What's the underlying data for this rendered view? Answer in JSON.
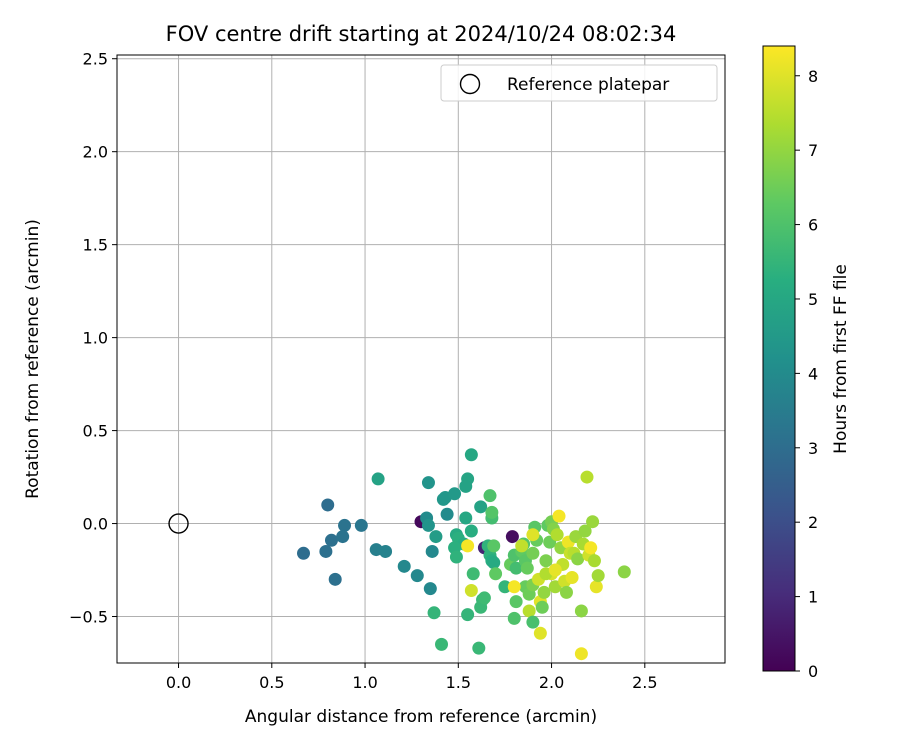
{
  "chart_data": {
    "type": "scatter",
    "title": "FOV centre drift starting at 2024/10/24 08:02:34",
    "xlabel": "Angular distance from reference (arcmin)",
    "ylabel": "Rotation from reference (arcmin)",
    "xlim": [
      -0.33,
      2.93
    ],
    "ylim": [
      -0.75,
      2.52
    ],
    "xticks": [
      0.0,
      0.5,
      1.0,
      1.5,
      2.0,
      2.5
    ],
    "xtick_labels": [
      "0.0",
      "0.5",
      "1.0",
      "1.5",
      "2.0",
      "2.5"
    ],
    "yticks": [
      -0.5,
      0.0,
      0.5,
      1.0,
      1.5,
      2.0,
      2.5
    ],
    "ytick_labels": [
      "−0.5",
      "0.0",
      "0.5",
      "1.0",
      "1.5",
      "2.0",
      "2.5"
    ],
    "grid": true,
    "legend": {
      "placement": "top-right",
      "entries": [
        "Reference platepar"
      ]
    },
    "reference_point": {
      "x": 0.0,
      "y": 0.0,
      "marker": "open-circle"
    },
    "colorbar": {
      "label": "Hours from first FF file",
      "colormap": "viridis",
      "range": [
        0,
        8.4
      ],
      "ticks": [
        0,
        1,
        2,
        3,
        4,
        5,
        6,
        7,
        8
      ],
      "tick_labels": [
        "0",
        "1",
        "2",
        "3",
        "4",
        "5",
        "6",
        "7",
        "8"
      ]
    },
    "points": [
      {
        "x": 1.3,
        "y": 0.01,
        "h": 0.2
      },
      {
        "x": 1.79,
        "y": -0.07,
        "h": 0.3
      },
      {
        "x": 1.64,
        "y": -0.13,
        "h": 0.8
      },
      {
        "x": 0.8,
        "y": 0.1,
        "h": 3.0
      },
      {
        "x": 0.67,
        "y": -0.16,
        "h": 3.0
      },
      {
        "x": 0.79,
        "y": -0.15,
        "h": 3.1
      },
      {
        "x": 0.82,
        "y": -0.09,
        "h": 3.1
      },
      {
        "x": 0.84,
        "y": -0.3,
        "h": 3.1
      },
      {
        "x": 0.89,
        "y": -0.01,
        "h": 3.2
      },
      {
        "x": 0.88,
        "y": -0.07,
        "h": 3.2
      },
      {
        "x": 0.98,
        "y": -0.01,
        "h": 3.3
      },
      {
        "x": 1.06,
        "y": -0.14,
        "h": 3.6
      },
      {
        "x": 1.11,
        "y": -0.15,
        "h": 3.7
      },
      {
        "x": 1.21,
        "y": -0.23,
        "h": 3.9
      },
      {
        "x": 1.28,
        "y": -0.28,
        "h": 3.9
      },
      {
        "x": 1.35,
        "y": -0.35,
        "h": 3.9
      },
      {
        "x": 1.36,
        "y": -0.15,
        "h": 3.9
      },
      {
        "x": 1.33,
        "y": 0.03,
        "h": 4.0
      },
      {
        "x": 1.34,
        "y": 0.22,
        "h": 4.3
      },
      {
        "x": 1.34,
        "y": -0.01,
        "h": 4.3
      },
      {
        "x": 1.44,
        "y": 0.05,
        "h": 4.0
      },
      {
        "x": 1.42,
        "y": 0.13,
        "h": 4.4
      },
      {
        "x": 1.43,
        "y": 0.14,
        "h": 4.4
      },
      {
        "x": 1.48,
        "y": 0.16,
        "h": 4.5
      },
      {
        "x": 1.38,
        "y": -0.07,
        "h": 4.6
      },
      {
        "x": 1.07,
        "y": 0.24,
        "h": 4.8
      },
      {
        "x": 1.55,
        "y": 0.24,
        "h": 4.9
      },
      {
        "x": 1.54,
        "y": 0.2,
        "h": 4.8
      },
      {
        "x": 1.57,
        "y": 0.37,
        "h": 5.0
      },
      {
        "x": 1.62,
        "y": 0.09,
        "h": 4.8
      },
      {
        "x": 1.54,
        "y": 0.03,
        "h": 5.0
      },
      {
        "x": 1.49,
        "y": -0.06,
        "h": 5.1
      },
      {
        "x": 1.5,
        "y": -0.08,
        "h": 5.3
      },
      {
        "x": 1.53,
        "y": -0.11,
        "h": 5.2
      },
      {
        "x": 1.57,
        "y": -0.04,
        "h": 5.2
      },
      {
        "x": 1.48,
        "y": -0.13,
        "h": 5.3
      },
      {
        "x": 1.49,
        "y": -0.18,
        "h": 5.4
      },
      {
        "x": 1.37,
        "y": -0.48,
        "h": 5.5
      },
      {
        "x": 1.41,
        "y": -0.65,
        "h": 5.6
      },
      {
        "x": 1.55,
        "y": -0.49,
        "h": 5.5
      },
      {
        "x": 1.58,
        "y": -0.27,
        "h": 5.7
      },
      {
        "x": 1.61,
        "y": -0.67,
        "h": 5.6
      },
      {
        "x": 1.62,
        "y": -0.45,
        "h": 5.6
      },
      {
        "x": 1.63,
        "y": -0.41,
        "h": 5.6
      },
      {
        "x": 1.64,
        "y": -0.4,
        "h": 5.7
      },
      {
        "x": 1.66,
        "y": -0.12,
        "h": 5.4
      },
      {
        "x": 1.67,
        "y": -0.17,
        "h": 5.4
      },
      {
        "x": 1.68,
        "y": -0.2,
        "h": 5.2
      },
      {
        "x": 1.69,
        "y": -0.21,
        "h": 5.1
      },
      {
        "x": 1.68,
        "y": 0.03,
        "h": 5.8
      },
      {
        "x": 1.67,
        "y": 0.15,
        "h": 6.0
      },
      {
        "x": 1.68,
        "y": 0.06,
        "h": 6.1
      },
      {
        "x": 1.69,
        "y": -0.12,
        "h": 6.2
      },
      {
        "x": 1.7,
        "y": -0.27,
        "h": 6.3
      },
      {
        "x": 1.75,
        "y": -0.34,
        "h": 5.5
      },
      {
        "x": 1.78,
        "y": -0.22,
        "h": 6.4
      },
      {
        "x": 1.8,
        "y": -0.17,
        "h": 6.0
      },
      {
        "x": 1.81,
        "y": -0.24,
        "h": 5.8
      },
      {
        "x": 1.81,
        "y": -0.42,
        "h": 6.2
      },
      {
        "x": 1.8,
        "y": -0.51,
        "h": 6.0
      },
      {
        "x": 1.84,
        "y": -0.15,
        "h": 6.3
      },
      {
        "x": 1.85,
        "y": -0.11,
        "h": 6.1
      },
      {
        "x": 1.86,
        "y": -0.2,
        "h": 6.2
      },
      {
        "x": 1.87,
        "y": -0.24,
        "h": 6.4
      },
      {
        "x": 1.86,
        "y": -0.34,
        "h": 6.4
      },
      {
        "x": 1.88,
        "y": -0.38,
        "h": 6.5
      },
      {
        "x": 1.88,
        "y": -0.47,
        "h": 7.5
      },
      {
        "x": 1.9,
        "y": -0.53,
        "h": 5.9
      },
      {
        "x": 1.9,
        "y": -0.33,
        "h": 6.7
      },
      {
        "x": 1.9,
        "y": -0.16,
        "h": 6.6
      },
      {
        "x": 1.91,
        "y": -0.02,
        "h": 6.2
      },
      {
        "x": 1.92,
        "y": -0.09,
        "h": 6.4
      },
      {
        "x": 1.93,
        "y": -0.3,
        "h": 7.8
      },
      {
        "x": 1.94,
        "y": -0.42,
        "h": 8.0
      },
      {
        "x": 1.94,
        "y": -0.59,
        "h": 8.0
      },
      {
        "x": 1.95,
        "y": -0.45,
        "h": 6.5
      },
      {
        "x": 1.96,
        "y": -0.37,
        "h": 7.0
      },
      {
        "x": 1.97,
        "y": -0.2,
        "h": 6.7
      },
      {
        "x": 1.98,
        "y": -0.01,
        "h": 6.3
      },
      {
        "x": 1.99,
        "y": -0.1,
        "h": 6.5
      },
      {
        "x": 2.0,
        "y": 0.01,
        "h": 6.6
      },
      {
        "x": 2.01,
        "y": -0.03,
        "h": 6.8
      },
      {
        "x": 2.0,
        "y": -0.27,
        "h": 7.9
      },
      {
        "x": 2.02,
        "y": -0.34,
        "h": 7.2
      },
      {
        "x": 2.03,
        "y": -0.06,
        "h": 7.4
      },
      {
        "x": 2.04,
        "y": 0.04,
        "h": 8.3
      },
      {
        "x": 2.05,
        "y": -0.13,
        "h": 7.0
      },
      {
        "x": 2.06,
        "y": -0.22,
        "h": 7.6
      },
      {
        "x": 2.07,
        "y": -0.31,
        "h": 7.8
      },
      {
        "x": 2.08,
        "y": -0.37,
        "h": 6.9
      },
      {
        "x": 2.09,
        "y": -0.1,
        "h": 8.2
      },
      {
        "x": 2.1,
        "y": -0.16,
        "h": 7.7
      },
      {
        "x": 2.11,
        "y": -0.29,
        "h": 8.1
      },
      {
        "x": 2.12,
        "y": -0.16,
        "h": 7.5
      },
      {
        "x": 2.13,
        "y": -0.07,
        "h": 7.1
      },
      {
        "x": 2.14,
        "y": -0.19,
        "h": 6.9
      },
      {
        "x": 2.16,
        "y": -0.47,
        "h": 6.9
      },
      {
        "x": 2.16,
        "y": -0.7,
        "h": 8.2
      },
      {
        "x": 2.17,
        "y": -0.11,
        "h": 7.3
      },
      {
        "x": 2.18,
        "y": -0.04,
        "h": 7.0
      },
      {
        "x": 2.19,
        "y": 0.25,
        "h": 7.5
      },
      {
        "x": 2.2,
        "y": -0.17,
        "h": 7.8
      },
      {
        "x": 2.21,
        "y": -0.13,
        "h": 8.3
      },
      {
        "x": 2.22,
        "y": 0.01,
        "h": 7.1
      },
      {
        "x": 2.23,
        "y": -0.2,
        "h": 7.3
      },
      {
        "x": 2.24,
        "y": -0.34,
        "h": 8.1
      },
      {
        "x": 2.25,
        "y": -0.28,
        "h": 7.2
      },
      {
        "x": 2.39,
        "y": -0.26,
        "h": 6.9
      },
      {
        "x": 1.57,
        "y": -0.36,
        "h": 7.8
      },
      {
        "x": 1.55,
        "y": -0.12,
        "h": 8.3
      },
      {
        "x": 1.8,
        "y": -0.34,
        "h": 8.3
      },
      {
        "x": 1.84,
        "y": -0.12,
        "h": 7.6
      },
      {
        "x": 1.9,
        "y": -0.06,
        "h": 8.0
      },
      {
        "x": 1.97,
        "y": -0.27,
        "h": 7.4
      },
      {
        "x": 2.02,
        "y": -0.25,
        "h": 8.1
      }
    ]
  }
}
